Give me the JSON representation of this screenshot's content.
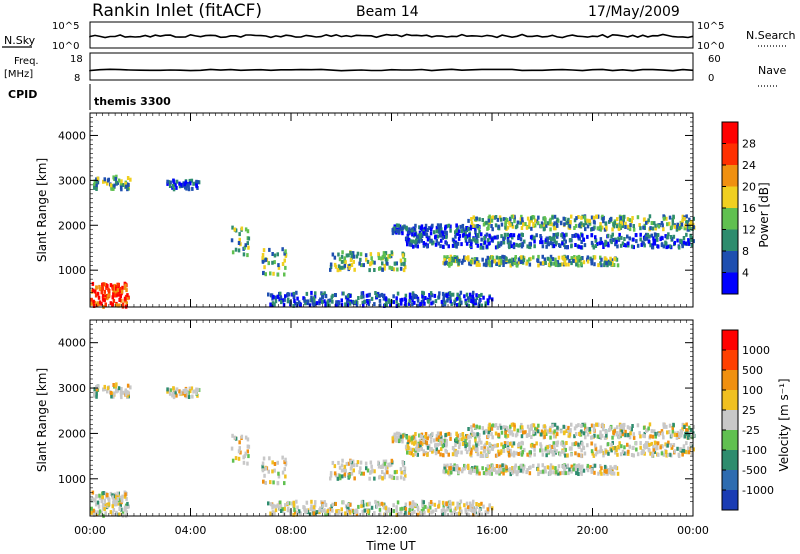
{
  "header": {
    "station": "Rankin Inlet (fitACF)",
    "beam": "Beam 14",
    "date": "17/May/2009"
  },
  "panels": {
    "nsky": {
      "left_label": "N.Sky",
      "ticks_left": [
        "10^5",
        "10^0"
      ],
      "ticks_right": [
        "10^5",
        "10^0"
      ],
      "right_label": "N.Search"
    },
    "freq": {
      "label_top": "Freq.",
      "label_unit": "[MHz]",
      "ticks_left": [
        "18",
        "8"
      ],
      "ticks_right": [
        "60",
        "0"
      ],
      "right_label": "Nave"
    },
    "cpid": {
      "label": "CPID",
      "mode": "themis 3300"
    }
  },
  "chart_data": [
    {
      "type": "heatmap",
      "name": "power",
      "ylabel": "Slant Range [km]",
      "xlabel": "",
      "x_ticks": [
        "00:00",
        "04:00",
        "08:00",
        "12:00",
        "16:00",
        "20:00",
        "00:00"
      ],
      "y_ticks": [
        "1000",
        "2000",
        "3000",
        "4000"
      ],
      "xlim_hours": [
        0,
        24
      ],
      "ylim_km": [
        180,
        4500
      ],
      "colorbar": {
        "label": "Power [dB]",
        "ticks": [
          "4",
          "8",
          "12",
          "16",
          "20",
          "24",
          "28"
        ],
        "colors": [
          "#0000ff",
          "#1e4fb0",
          "#2e8c6e",
          "#60c050",
          "#f0d020",
          "#f09010",
          "#ff3000",
          "#ff0000"
        ]
      },
      "echo_regions": [
        {
          "t": [
            0.0,
            1.5
          ],
          "r": [
            180,
            700
          ],
          "level": "high"
        },
        {
          "t": [
            0.1,
            1.6
          ],
          "r": [
            2800,
            3100
          ],
          "level": "mid"
        },
        {
          "t": [
            3.0,
            4.3
          ],
          "r": [
            2800,
            3000
          ],
          "level": "low"
        },
        {
          "t": [
            5.6,
            6.3
          ],
          "r": [
            1300,
            2000
          ],
          "level": "mid"
        },
        {
          "t": [
            6.8,
            7.8
          ],
          "r": [
            900,
            1500
          ],
          "level": "mid"
        },
        {
          "t": [
            9.5,
            12.5
          ],
          "r": [
            1000,
            1400
          ],
          "level": "mid"
        },
        {
          "t": [
            12.0,
            15.5
          ],
          "r": [
            1800,
            2000
          ],
          "level": "low"
        },
        {
          "t": [
            15.0,
            24.0
          ],
          "r": [
            1900,
            2200
          ],
          "level": "mid"
        },
        {
          "t": [
            12.5,
            24.0
          ],
          "r": [
            1500,
            1800
          ],
          "level": "low"
        },
        {
          "t": [
            14.0,
            21.0
          ],
          "r": [
            1100,
            1300
          ],
          "level": "mid"
        },
        {
          "t": [
            7.0,
            16.0
          ],
          "r": [
            200,
            500
          ],
          "level": "low"
        }
      ]
    },
    {
      "type": "heatmap",
      "name": "velocity",
      "ylabel": "Slant Range [km]",
      "xlabel": "Time UT",
      "x_ticks": [
        "00:00",
        "04:00",
        "08:00",
        "12:00",
        "16:00",
        "20:00",
        "00:00"
      ],
      "y_ticks": [
        "1000",
        "2000",
        "3000",
        "4000"
      ],
      "xlim_hours": [
        0,
        24
      ],
      "ylim_km": [
        180,
        4500
      ],
      "colorbar": {
        "label": "Velocity [m s⁻¹]",
        "ticks": [
          "1000",
          "500",
          "100",
          "25",
          "-25",
          "-100",
          "-500",
          "-1000"
        ],
        "colors": [
          "#1a3cb4",
          "#2e6cb0",
          "#2e8c6e",
          "#60c050",
          "#c8c8c8",
          "#f0c020",
          "#f09010",
          "#ff4000",
          "#ff0000"
        ]
      }
    }
  ]
}
